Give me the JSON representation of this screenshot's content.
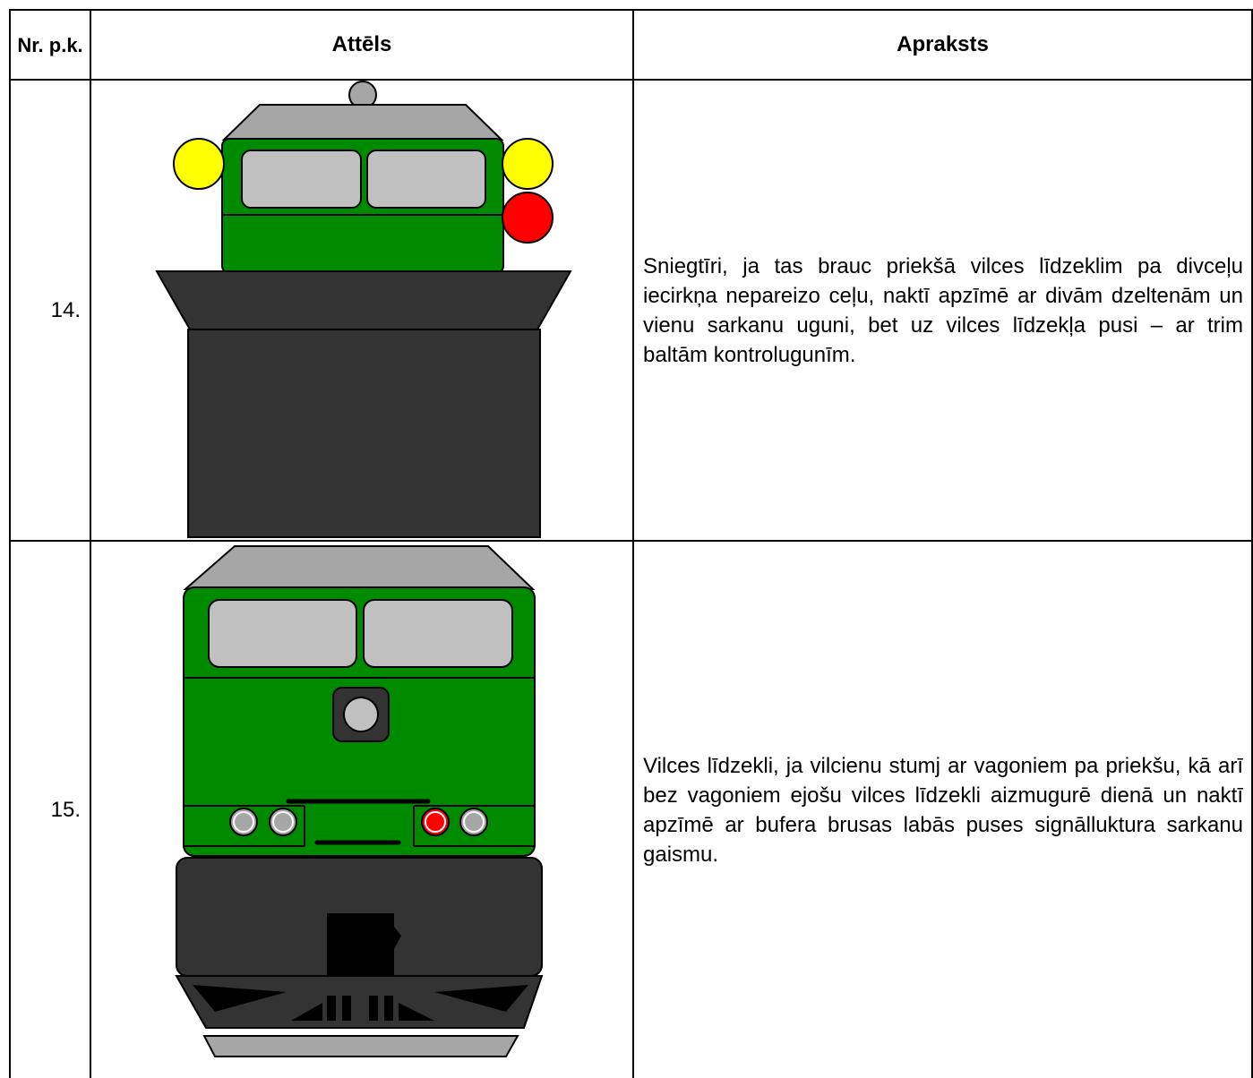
{
  "table": {
    "header": [
      "Nr. p.k.",
      "Attēls",
      "Apraksts"
    ],
    "rows": [
      {
        "number": "14.",
        "description": "Sniegtīri, ja tas brauc priekšā vilces līdzeklim pa divceļu iecirkņa nepareizo ceļu, naktī apzīmē ar divām dzeltenām un vienu sarkanu uguni, bet uz vilces līdzekļa pusi – ar trim baltām kontrolugunīm."
      },
      {
        "number": "15.",
        "description": "Vilces līdzekli, ja vilcienu stumj ar vagoniem pa priekšu, kā arī bez vagoniem ejošu vilces līdzekli aizmugurē dienā un naktī apzīmē ar bufera brusas labās puses signālluktura sarkanu gaismu."
      }
    ]
  }
}
